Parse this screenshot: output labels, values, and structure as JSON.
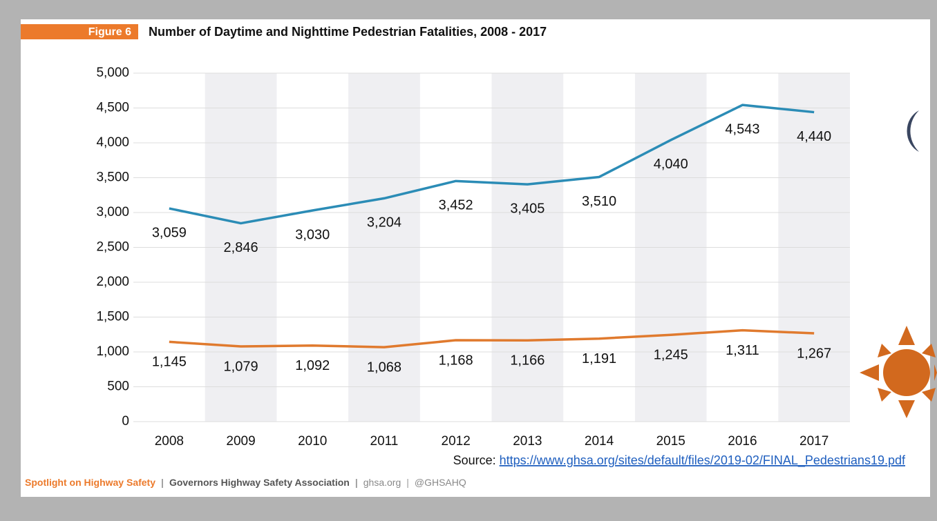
{
  "chart_data": {
    "type": "line",
    "figure_label": "Figure 6",
    "title": "Number of Daytime and Nighttime Pedestrian Fatalities, 2008 - 2017",
    "categories": [
      "2008",
      "2009",
      "2010",
      "2011",
      "2012",
      "2013",
      "2014",
      "2015",
      "2016",
      "2017"
    ],
    "series": [
      {
        "color": "#2b8cb6",
        "values": [
          3059,
          2846,
          3030,
          3204,
          3452,
          3405,
          3510,
          4040,
          4543,
          4440
        ],
        "value_labels": [
          "3,059",
          "2,846",
          "3,030",
          "3,204",
          "3,452",
          "3,405",
          "3,510",
          "4,040",
          "4,543",
          "4,440"
        ]
      },
      {
        "color": "#e07a2e",
        "values": [
          1145,
          1079,
          1092,
          1068,
          1168,
          1166,
          1191,
          1245,
          1311,
          1267
        ],
        "value_labels": [
          "1,145",
          "1,079",
          "1,092",
          "1,068",
          "1,168",
          "1,166",
          "1,191",
          "1,245",
          "1,311",
          "1,267"
        ]
      }
    ],
    "ylim": [
      0,
      5000
    ],
    "yticks": [
      0,
      500,
      {
        "value": 1000,
        "label": "1,000"
      },
      {
        "value": 1500,
        "label": "1,500"
      },
      {
        "value": 2000,
        "label": "2,000"
      },
      {
        "value": 2500,
        "label": "2,500"
      },
      {
        "value": 3000,
        "label": "3,000"
      },
      {
        "value": 3500,
        "label": "3,500"
      },
      {
        "value": 4000,
        "label": "4,000"
      },
      {
        "value": 4500,
        "label": "4,500"
      },
      {
        "value": 5000,
        "label": "5,000"
      }
    ],
    "grid": true,
    "source_prefix": "Source: ",
    "source_url": "https://www.ghsa.org/sites/default/files/2019-02/FINAL_Pedestrians19.pdf",
    "footer": [
      "Spotlight on Highway Safety",
      "|",
      "Governors Highway Safety Association",
      "|",
      "ghsa.org",
      "|",
      "@GHSAHQ"
    ]
  }
}
